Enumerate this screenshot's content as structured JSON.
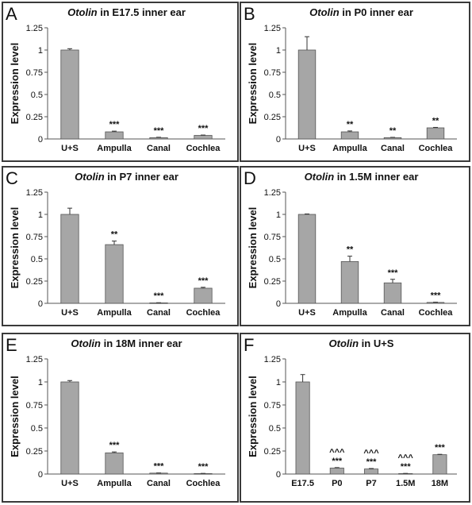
{
  "chart_data": [
    {
      "letter": "A",
      "gene": "Otolin",
      "title_rest": " in E17.5 inner ear",
      "type": "bar",
      "ylabel": "Expression level",
      "ylim": [
        0,
        1.25
      ],
      "yticks": [
        "0",
        "0.25",
        "0.5",
        "0.75",
        "1",
        "1.25"
      ],
      "categories": [
        "U+S",
        "Ampulla",
        "Canal",
        "Cochlea"
      ],
      "values": [
        1.0,
        0.08,
        0.015,
        0.04
      ],
      "errors": [
        0.015,
        0.008,
        0.004,
        0.004
      ],
      "sig": [
        [],
        [
          "***"
        ],
        [
          "***"
        ],
        [
          "***"
        ]
      ]
    },
    {
      "letter": "B",
      "gene": "Otolin",
      "title_rest": " in P0 inner ear",
      "type": "bar",
      "ylabel": "Expression level",
      "ylim": [
        0,
        1.25
      ],
      "yticks": [
        "0",
        "0.25",
        "0.5",
        "0.75",
        "1",
        "1.25"
      ],
      "categories": [
        "U+S",
        "Ampulla",
        "Canal",
        "Cochlea"
      ],
      "values": [
        1.0,
        0.08,
        0.015,
        0.125
      ],
      "errors": [
        0.15,
        0.01,
        0.003,
        0.005
      ],
      "sig": [
        [],
        [
          "**"
        ],
        [
          "**"
        ],
        [
          "**"
        ]
      ]
    },
    {
      "letter": "C",
      "gene": "Otolin",
      "title_rest": " in P7 inner ear",
      "type": "bar",
      "ylabel": "Expression level",
      "ylim": [
        0,
        1.25
      ],
      "yticks": [
        "0",
        "0.25",
        "0.5",
        "0.75",
        "1",
        "1.25"
      ],
      "categories": [
        "U+S",
        "Ampulla",
        "Canal",
        "Cochlea"
      ],
      "values": [
        1.0,
        0.66,
        0.005,
        0.17
      ],
      "errors": [
        0.07,
        0.04,
        0.002,
        0.01
      ],
      "sig": [
        [],
        [
          "**"
        ],
        [
          "***"
        ],
        [
          "***"
        ]
      ]
    },
    {
      "letter": "D",
      "gene": "Otolin",
      "title_rest": " in 1.5M inner ear",
      "type": "bar",
      "ylabel": "Expression level",
      "ylim": [
        0,
        1.25
      ],
      "yticks": [
        "0",
        "0.25",
        "0.5",
        "0.75",
        "1",
        "1.25"
      ],
      "categories": [
        "U+S",
        "Ampulla",
        "Canal",
        "Cochlea"
      ],
      "values": [
        1.0,
        0.47,
        0.23,
        0.01
      ],
      "errors": [
        0.005,
        0.06,
        0.04,
        0.003
      ],
      "sig": [
        [],
        [
          "**"
        ],
        [
          "***"
        ],
        [
          "***"
        ]
      ]
    },
    {
      "letter": "E",
      "gene": "Otolin",
      "title_rest": " in 18M inner ear",
      "type": "bar",
      "ylabel": "Expression level",
      "ylim": [
        0,
        1.25
      ],
      "yticks": [
        "0",
        "0.25",
        "0.5",
        "0.75",
        "1",
        "1.25"
      ],
      "categories": [
        "U+S",
        "Ampulla",
        "Canal",
        "Cochlea"
      ],
      "values": [
        1.0,
        0.23,
        0.01,
        0.005
      ],
      "errors": [
        0.015,
        0.01,
        0.002,
        0.002
      ],
      "sig": [
        [],
        [
          "***"
        ],
        [
          "***"
        ],
        [
          "***"
        ]
      ]
    },
    {
      "letter": "F",
      "gene": "Otolin",
      "title_rest": " in U+S",
      "type": "bar",
      "ylabel": "Expression level",
      "ylim": [
        0,
        1.25
      ],
      "yticks": [
        "0",
        "0.25",
        "0.5",
        "0.75",
        "1",
        "1.25"
      ],
      "categories": [
        "E17.5",
        "P0",
        "P7",
        "1.5M",
        "18M"
      ],
      "values": [
        1.0,
        0.065,
        0.055,
        0.005,
        0.21
      ],
      "errors": [
        0.08,
        0.005,
        0.005,
        0.002,
        0.004
      ],
      "sig": [
        [],
        [
          "^^^",
          "***"
        ],
        [
          "^^^",
          "***"
        ],
        [
          "^^^",
          "***"
        ],
        [
          "***"
        ]
      ]
    }
  ]
}
